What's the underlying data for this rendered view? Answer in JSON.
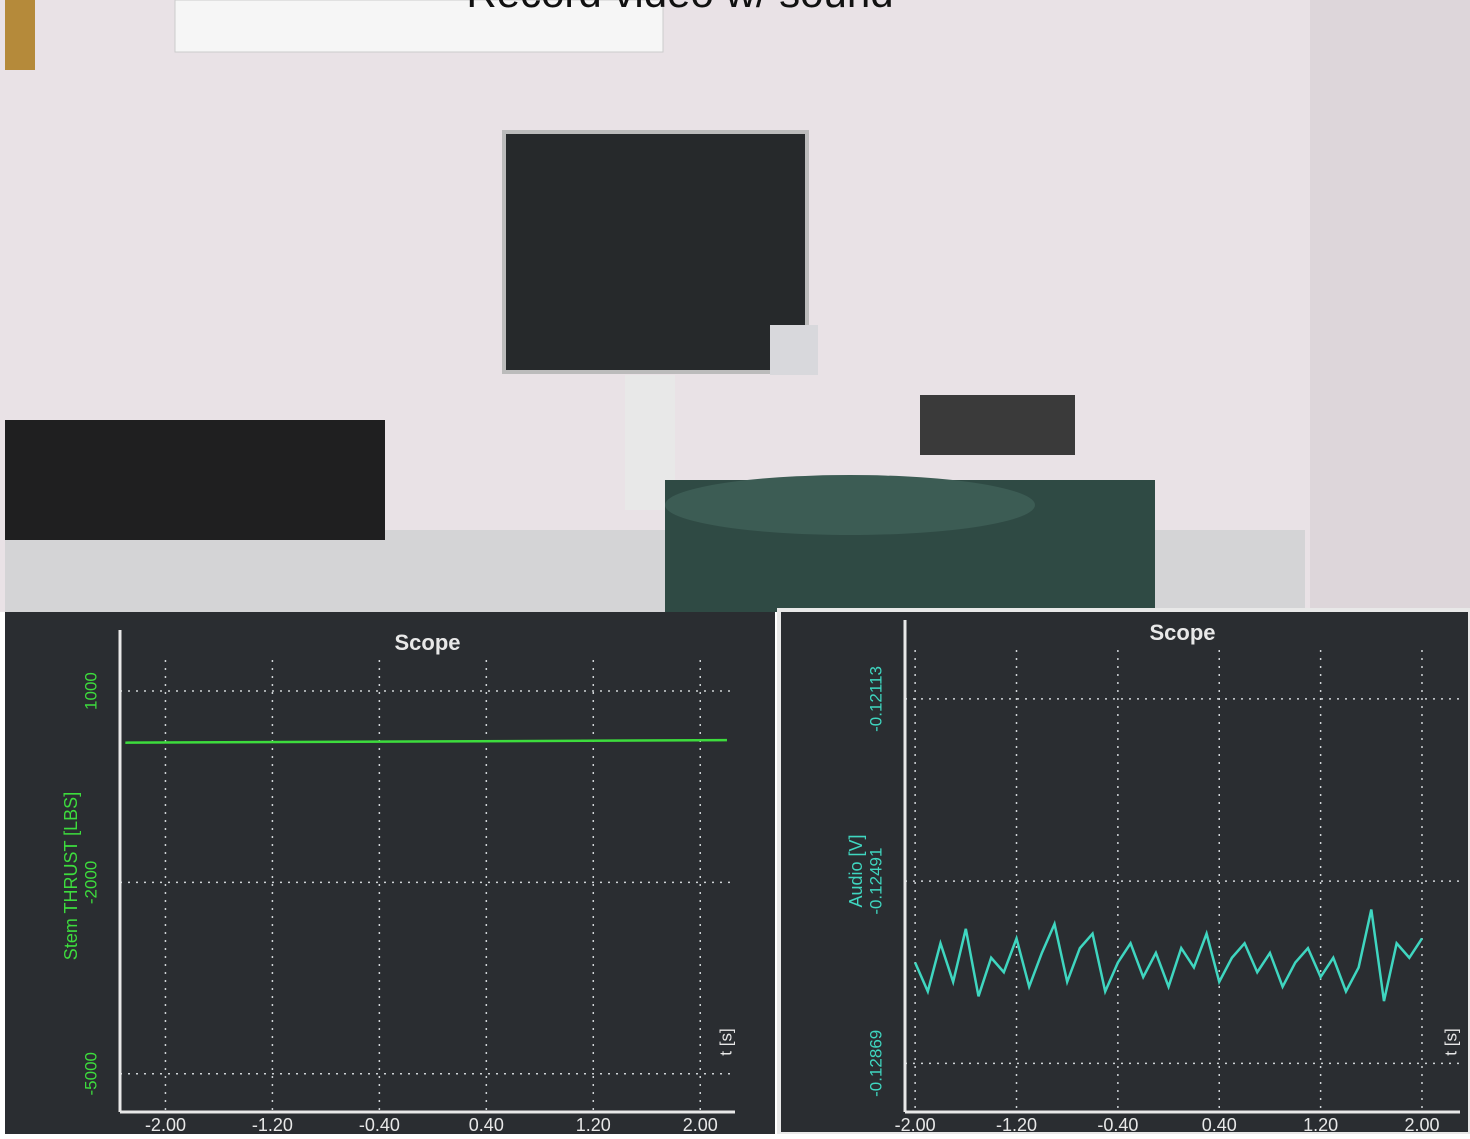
{
  "caption": "Record video w/ sound",
  "chart_data": [
    {
      "type": "line",
      "title": "Scope",
      "y_label": "Stem THRUST [LBS]",
      "x_label": "t [s]",
      "xlim": [
        -2.34,
        2.26
      ],
      "xticks": [
        {
          "value": -2,
          "label": "-2.00"
        },
        {
          "value": -1.2,
          "label": "-1.20"
        },
        {
          "value": -0.4,
          "label": "-0.40"
        },
        {
          "value": 0.4,
          "label": "0.40"
        },
        {
          "value": 1.2,
          "label": "1.20"
        },
        {
          "value": 2,
          "label": "2.00"
        }
      ],
      "ylim": [
        -5600,
        1800
      ],
      "yticks": [
        1000,
        -2000,
        -5000
      ],
      "grid": true,
      "series": [
        {
          "color": "#3ddc3d",
          "x": [
            -2.3,
            2.2
          ],
          "values": [
            190,
            230
          ]
        }
      ]
    },
    {
      "type": "line",
      "title": "Scope",
      "y_label": "Audio [V]",
      "x_label": "t [s]",
      "xlim": [
        -2.08,
        2.3
      ],
      "xticks": [
        {
          "value": -2,
          "label": "-2.00"
        },
        {
          "value": -1.2,
          "label": "-1.20"
        },
        {
          "value": -0.4,
          "label": "-0.40"
        },
        {
          "value": 0.4,
          "label": "0.40"
        },
        {
          "value": 1.2,
          "label": "1.20"
        },
        {
          "value": 2,
          "label": "2.00"
        }
      ],
      "ylim": [
        -0.1297,
        -0.1197
      ],
      "yticks": [
        -0.12113,
        -0.12491,
        -0.12869
      ],
      "grid": true,
      "series": [
        {
          "color": "#3fd6c0",
          "x": [
            -2.0,
            -1.9,
            -1.8,
            -1.7,
            -1.6,
            -1.5,
            -1.4,
            -1.3,
            -1.2,
            -1.1,
            -1.0,
            -0.9,
            -0.8,
            -0.7,
            -0.6,
            -0.5,
            -0.4,
            -0.3,
            -0.2,
            -0.1,
            0.0,
            0.1,
            0.2,
            0.3,
            0.4,
            0.5,
            0.6,
            0.7,
            0.8,
            0.9,
            1.0,
            1.1,
            1.2,
            1.3,
            1.4,
            1.5,
            1.6,
            1.7,
            1.8,
            1.9,
            2.0
          ],
          "values": [
            -0.1266,
            -0.1272,
            -0.1262,
            -0.127,
            -0.1259,
            -0.1273,
            -0.1265,
            -0.1268,
            -0.1261,
            -0.1271,
            -0.1264,
            -0.1258,
            -0.127,
            -0.1263,
            -0.126,
            -0.1272,
            -0.1266,
            -0.1262,
            -0.1269,
            -0.1264,
            -0.1271,
            -0.1263,
            -0.1267,
            -0.126,
            -0.127,
            -0.1265,
            -0.1262,
            -0.1268,
            -0.1264,
            -0.1271,
            -0.1266,
            -0.1263,
            -0.1269,
            -0.1265,
            -0.1272,
            -0.1267,
            -0.1255,
            -0.1274,
            -0.1262,
            -0.1265,
            -0.1261
          ]
        }
      ]
    }
  ]
}
